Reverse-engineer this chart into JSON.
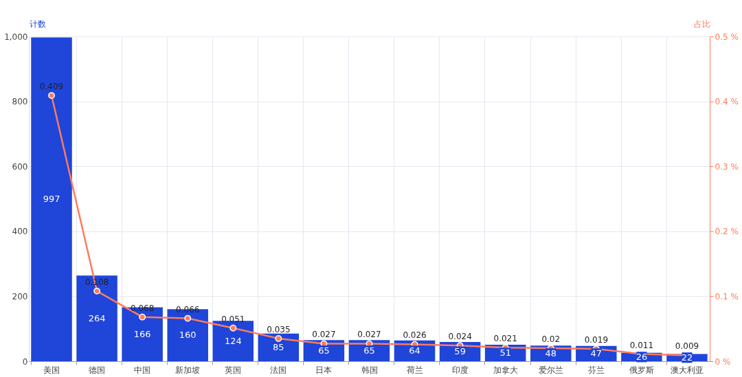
{
  "chart_data": {
    "type": "bar",
    "ylabel": "计数",
    "y2label": "占比",
    "categories": [
      "美国",
      "德国",
      "中国",
      "新加坡",
      "英国",
      "法国",
      "日本",
      "韩国",
      "荷兰",
      "印度",
      "加拿大",
      "爱尔兰",
      "芬兰",
      "俄罗斯",
      "澳大利亚"
    ],
    "series": [
      {
        "color": "#1f45d9",
        "values": [
          997,
          264,
          166,
          160,
          124,
          85,
          65,
          65,
          64,
          59,
          51,
          48,
          47,
          26,
          22
        ]
      },
      {
        "type": "line",
        "axis": "y2",
        "color": "#ff7b5c",
        "values": [
          0.409,
          0.108,
          0.068,
          0.066,
          0.051,
          0.035,
          0.027,
          0.027,
          0.026,
          0.024,
          0.021,
          0.02,
          0.019,
          0.011,
          0.009
        ]
      }
    ],
    "ylim": [
      0,
      1000
    ],
    "yticks": [
      0,
      200,
      400,
      600,
      800,
      {
        "value": 1000,
        "label": "1,000"
      }
    ],
    "y2lim": [
      0,
      0.5
    ],
    "y2ticks": [
      {
        "value": 0,
        "label": "0 %"
      },
      {
        "value": 0.1,
        "label": "0.1 %"
      },
      {
        "value": 0.2,
        "label": "0.2 %"
      },
      {
        "value": 0.3,
        "label": "0.3 %"
      },
      {
        "value": 0.4,
        "label": "0.4 %"
      },
      {
        "value": 0.5,
        "label": "0.5 %"
      }
    ],
    "grid": true,
    "marker": "circle",
    "data_labels": true
  }
}
